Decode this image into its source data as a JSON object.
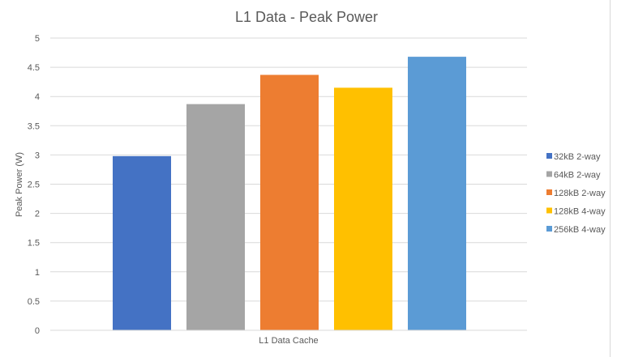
{
  "chart_data": {
    "type": "bar",
    "title": "L1 Data - Peak Power",
    "xlabel": "L1 Data Cache",
    "ylabel": "Peak Power (W)",
    "categories": [
      "L1 Data Cache"
    ],
    "ylim": [
      0,
      5
    ],
    "yticks": [
      "0",
      "0.5",
      "1",
      "1.5",
      "2",
      "2.5",
      "3",
      "3.5",
      "4",
      "4.5",
      "5"
    ],
    "grid": true,
    "legend_position": "right",
    "series": [
      {
        "name": "32kB 2-way",
        "values": [
          2.98
        ],
        "color": "#4472C4"
      },
      {
        "name": "64kB 2-way",
        "values": [
          3.87
        ],
        "color": "#A5A5A5"
      },
      {
        "name": "128kB 2-way",
        "values": [
          4.37
        ],
        "color": "#ED7D31"
      },
      {
        "name": "128kB 4-way",
        "values": [
          4.15
        ],
        "color": "#FFC000"
      },
      {
        "name": "256kB 4-way",
        "values": [
          4.68
        ],
        "color": "#5B9BD5"
      }
    ]
  }
}
